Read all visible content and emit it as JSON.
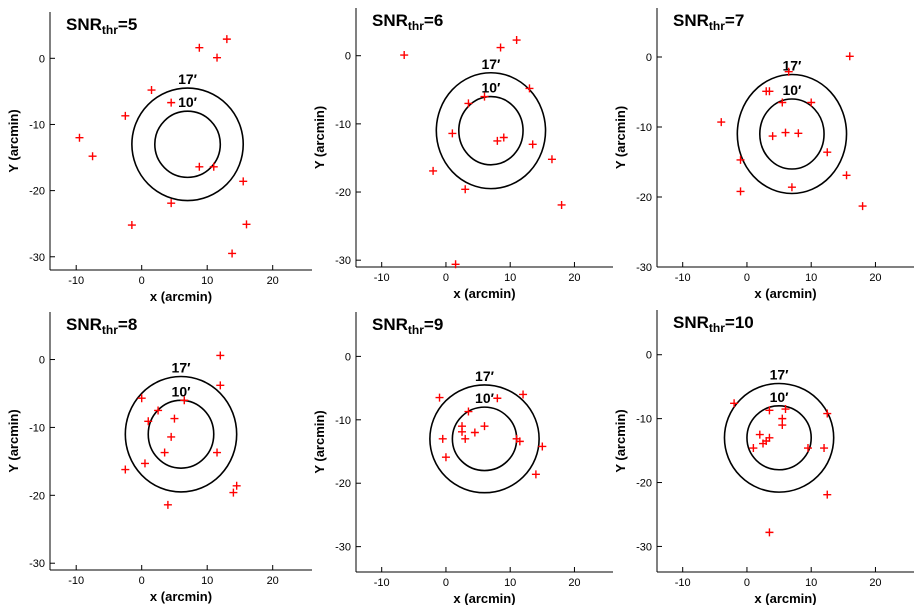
{
  "colors": {
    "marker": "#ff0000",
    "circle": "#000000",
    "axis": "#000000"
  },
  "chart_data": [
    {
      "type": "scatter",
      "title_main": "SNR",
      "title_sub": "thr",
      "title_eq": "=5",
      "xlabel": "x (arcmin)",
      "ylabel": "Y (arcmin)",
      "xlim": [
        -14,
        26
      ],
      "ylim": [
        -32,
        7
      ],
      "xticks": [
        -10,
        0,
        10,
        20
      ],
      "yticks": [
        0,
        -10,
        -20,
        -30
      ],
      "center": [
        7,
        -13
      ],
      "circles": [
        {
          "r": 5,
          "label": "10′"
        },
        {
          "r": 8.5,
          "label": "17′"
        }
      ],
      "points": [
        [
          -9.5,
          -12
        ],
        [
          -7.5,
          -14.8
        ],
        [
          -2.5,
          -8.7
        ],
        [
          1.5,
          -4.8
        ],
        [
          -1.5,
          -25.2
        ],
        [
          4.5,
          -6.7
        ],
        [
          4.5,
          -21.9
        ],
        [
          8.8,
          1.6
        ],
        [
          8.8,
          -16.4
        ],
        [
          11,
          -16.4
        ],
        [
          11.5,
          0.1
        ],
        [
          13,
          2.9
        ],
        [
          13.8,
          -29.5
        ],
        [
          15.5,
          -18.6
        ],
        [
          16,
          -25.1
        ]
      ]
    },
    {
      "type": "scatter",
      "title_main": "SNR",
      "title_sub": "thr",
      "title_eq": "=6",
      "xlabel": "x (arcmin)",
      "ylabel": "Y (arcmin)",
      "xlim": [
        -14,
        26
      ],
      "ylim": [
        -31,
        7
      ],
      "xticks": [
        -10,
        0,
        10,
        20
      ],
      "yticks": [
        0,
        -10,
        -20,
        -30
      ],
      "center": [
        7,
        -11
      ],
      "circles": [
        {
          "r": 5,
          "label": "10′"
        },
        {
          "r": 8.5,
          "label": "17′"
        }
      ],
      "points": [
        [
          -6.5,
          0.1
        ],
        [
          -2,
          -16.9
        ],
        [
          1,
          -11.4
        ],
        [
          1.5,
          -30.6
        ],
        [
          3,
          -19.6
        ],
        [
          3.5,
          -7
        ],
        [
          6,
          -6
        ],
        [
          8,
          -12.5
        ],
        [
          8.5,
          1.2
        ],
        [
          9,
          -12
        ],
        [
          11,
          2.3
        ],
        [
          13,
          -4.8
        ],
        [
          13.5,
          -13
        ],
        [
          16.5,
          -15.2
        ],
        [
          18,
          -21.9
        ]
      ]
    },
    {
      "type": "scatter",
      "title_main": "SNR",
      "title_sub": "thr",
      "title_eq": "=7",
      "xlabel": "x (arcmin)",
      "ylabel": "Y (arcmin)",
      "xlim": [
        -14,
        26
      ],
      "ylim": [
        -30,
        7
      ],
      "xticks": [
        -10,
        0,
        10,
        20
      ],
      "yticks": [
        0,
        -10,
        -20,
        -30
      ],
      "center": [
        7,
        -11
      ],
      "circles": [
        {
          "r": 5,
          "label": "10′"
        },
        {
          "r": 8.5,
          "label": "17′"
        }
      ],
      "points": [
        [
          -4,
          -9.3
        ],
        [
          -1,
          -14.7
        ],
        [
          -1,
          -19.2
        ],
        [
          3,
          -4.9
        ],
        [
          3.5,
          -4.9
        ],
        [
          4,
          -11.3
        ],
        [
          5.5,
          -6.5
        ],
        [
          6,
          -10.8
        ],
        [
          6.5,
          -2.1
        ],
        [
          7,
          -18.6
        ],
        [
          8,
          -10.9
        ],
        [
          10,
          -6.5
        ],
        [
          12.5,
          -13.6
        ],
        [
          15.5,
          -16.9
        ],
        [
          16,
          0.1
        ],
        [
          18,
          -21.3
        ]
      ]
    },
    {
      "type": "scatter",
      "title_main": "SNR",
      "title_sub": "thr",
      "title_eq": "=8",
      "xlabel": "x (arcmin)",
      "ylabel": "Y (arcmin)",
      "xlim": [
        -14,
        26
      ],
      "ylim": [
        -31,
        7
      ],
      "xticks": [
        -10,
        0,
        10,
        20
      ],
      "yticks": [
        0,
        -10,
        -20,
        -30
      ],
      "center": [
        6,
        -11
      ],
      "circles": [
        {
          "r": 5,
          "label": "10′"
        },
        {
          "r": 8.5,
          "label": "17′"
        }
      ],
      "points": [
        [
          -2.5,
          -16.2
        ],
        [
          0,
          -5.7
        ],
        [
          0.5,
          -15.3
        ],
        [
          1,
          -9.1
        ],
        [
          2.5,
          -7.5
        ],
        [
          3.5,
          -13.7
        ],
        [
          4,
          -21.4
        ],
        [
          4.5,
          -11.4
        ],
        [
          5,
          -8.7
        ],
        [
          6.5,
          -6
        ],
        [
          11.5,
          -13.7
        ],
        [
          12,
          0.6
        ],
        [
          12,
          -3.8
        ],
        [
          14,
          -19.6
        ],
        [
          14.5,
          -18.6
        ]
      ]
    },
    {
      "type": "scatter",
      "title_main": "SNR",
      "title_sub": "thr",
      "title_eq": "=9",
      "xlabel": "x (arcmin)",
      "ylabel": "Y (arcmin)",
      "xlim": [
        -14,
        26
      ],
      "ylim": [
        -34,
        7
      ],
      "xticks": [
        -10,
        0,
        10,
        20
      ],
      "yticks": [
        0,
        -10,
        -20,
        -30
      ],
      "center": [
        6,
        -13
      ],
      "circles": [
        {
          "r": 5,
          "label": "10′"
        },
        {
          "r": 8.5,
          "label": "17′"
        }
      ],
      "points": [
        [
          -1,
          -6.5
        ],
        [
          -0.5,
          -13
        ],
        [
          0,
          -15.9
        ],
        [
          2.5,
          -11
        ],
        [
          2.5,
          -11.9
        ],
        [
          3,
          -13
        ],
        [
          3.5,
          -8.7
        ],
        [
          4.5,
          -12
        ],
        [
          6,
          -11
        ],
        [
          8,
          -6.6
        ],
        [
          11,
          -13
        ],
        [
          11.5,
          -13.4
        ],
        [
          12,
          -6
        ],
        [
          14,
          -18.6
        ],
        [
          15,
          -14.2
        ]
      ]
    },
    {
      "type": "scatter",
      "title_main": "SNR",
      "title_sub": "thr",
      "title_eq": "=10",
      "xlabel": "x (arcmin)",
      "ylabel": "Y (arcmin)",
      "xlim": [
        -14,
        26
      ],
      "ylim": [
        -34,
        7
      ],
      "xticks": [
        -10,
        0,
        10,
        20
      ],
      "yticks": [
        0,
        -10,
        -20,
        -30
      ],
      "center": [
        5,
        -13
      ],
      "circles": [
        {
          "r": 5,
          "label": "10′"
        },
        {
          "r": 8.5,
          "label": "17′"
        }
      ],
      "points": [
        [
          -2,
          -7.6
        ],
        [
          1,
          -14.6
        ],
        [
          2,
          -12.5
        ],
        [
          2.5,
          -13.9
        ],
        [
          3,
          -13.5
        ],
        [
          3.5,
          -13
        ],
        [
          3.5,
          -8.7
        ],
        [
          3.5,
          -27.8
        ],
        [
          5.5,
          -10
        ],
        [
          5.5,
          -11
        ],
        [
          6,
          -8.5
        ],
        [
          9.5,
          -14.6
        ],
        [
          12,
          -14.6
        ],
        [
          12.5,
          -9.2
        ],
        [
          12.5,
          -21.9
        ]
      ]
    }
  ]
}
